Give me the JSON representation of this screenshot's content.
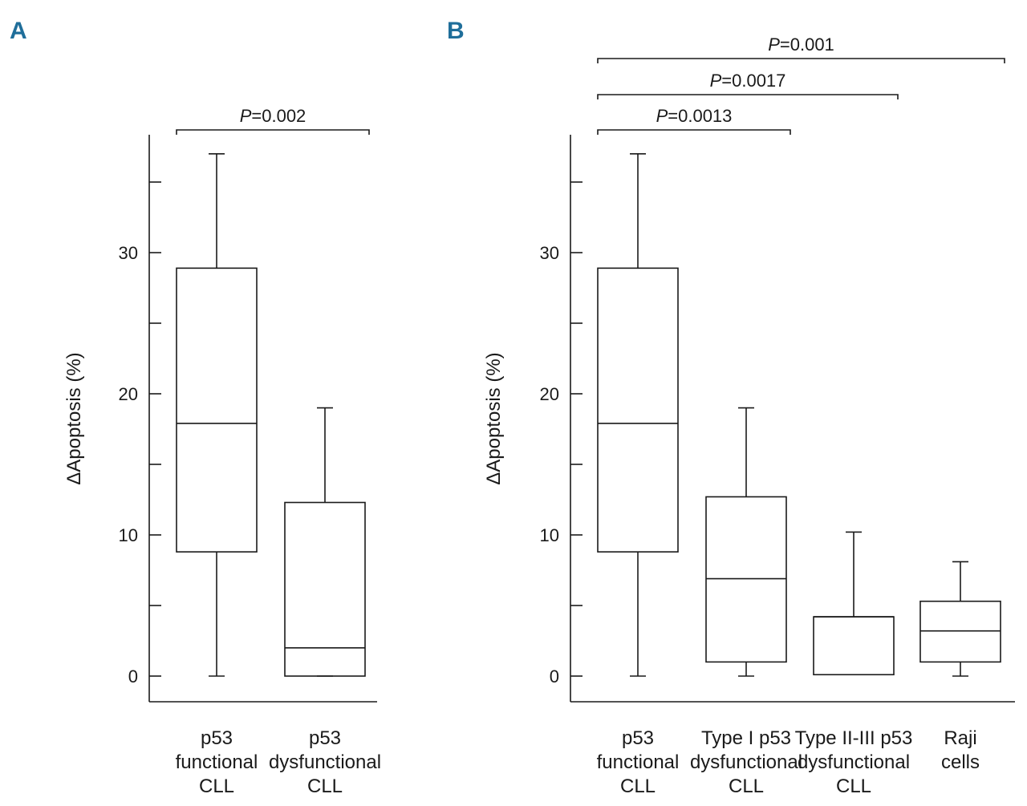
{
  "chart_data": [
    {
      "type": "box",
      "panel_label": "A",
      "ylabel": "ΔApoptosis (%)",
      "ylim": [
        -1.8,
        38.5
      ],
      "yticks_labeled": [
        0,
        10,
        20,
        30
      ],
      "yticks_minor": [
        5,
        15,
        25,
        35
      ],
      "categories": [
        [
          "p53",
          "functional",
          "CLL"
        ],
        [
          "p53",
          "dysfunctional",
          "CLL"
        ]
      ],
      "boxes": [
        {
          "min": 0,
          "q1": 8.8,
          "median": 17.9,
          "q3": 28.9,
          "max": 37
        },
        {
          "min": 0,
          "q1": 0,
          "median": 2.0,
          "q3": 12.3,
          "max": 19
        }
      ],
      "comparisons": [
        {
          "from": 0,
          "to": 1,
          "text_p": "P",
          "text_rest": "=0.002",
          "level": 0
        }
      ],
      "accent_color": "#1f6e9a"
    },
    {
      "type": "box",
      "panel_label": "B",
      "ylabel": "ΔApoptosis (%)",
      "ylim": [
        -1.8,
        38.5
      ],
      "yticks_labeled": [
        0,
        10,
        20,
        30
      ],
      "yticks_minor": [
        5,
        15,
        25,
        35
      ],
      "categories": [
        [
          "p53",
          "functional",
          "CLL"
        ],
        [
          "Type I p53",
          "dysfunctional",
          "CLL"
        ],
        [
          "Type II-III p53",
          "dysfunctional",
          "CLL"
        ],
        [
          "Raji",
          "cells"
        ]
      ],
      "boxes": [
        {
          "min": 0,
          "q1": 8.8,
          "median": 17.9,
          "q3": 28.9,
          "max": 37
        },
        {
          "min": 0,
          "q1": 1.0,
          "median": 6.9,
          "q3": 12.7,
          "max": 19
        },
        {
          "min": 0.1,
          "q1": 0.1,
          "median": 4.2,
          "q3": 4.2,
          "max": 10.2
        },
        {
          "min": 0,
          "q1": 1.0,
          "median": 3.2,
          "q3": 5.3,
          "max": 8.1
        }
      ],
      "comparisons": [
        {
          "from": 0,
          "to": 1,
          "text_p": "P",
          "text_rest": "=0.0013",
          "level": 0
        },
        {
          "from": 0,
          "to": 2,
          "text_p": "P",
          "text_rest": "=0.0017",
          "level": 1
        },
        {
          "from": 0,
          "to": 3,
          "text_p": "P",
          "text_rest": "=0.001",
          "level": 2
        }
      ],
      "accent_color": "#1f6e9a"
    }
  ]
}
